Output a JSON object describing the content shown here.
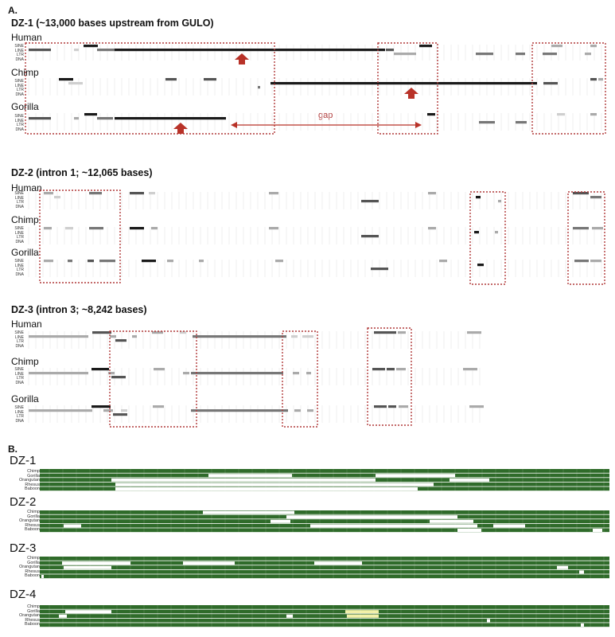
{
  "panel_a": {
    "letter": "A.",
    "sections": [
      {
        "title": "DZ-1 (~13,000 bases upstream from GULO)",
        "species": [
          {
            "name": "Human",
            "rows": [
              "SINE",
              "LINE",
              "LTR",
              "DNA"
            ]
          },
          {
            "name": "Chimp",
            "rows": [
              "SINE",
              "LINE",
              "LTR",
              "DNA"
            ]
          },
          {
            "name": "Gorilla",
            "rows": [
              "SINE",
              "LINE",
              "LTR",
              "DNA"
            ]
          }
        ],
        "gap_label": "gap"
      },
      {
        "title": "DZ-2 (intron 1; ~12,065 bases)",
        "species": [
          {
            "name": "Human",
            "rows": [
              "SINE",
              "LINE",
              "LTR",
              "DNA"
            ]
          },
          {
            "name": "Chimp",
            "rows": [
              "SINE",
              "LINE",
              "LTR",
              "DNA"
            ]
          },
          {
            "name": "Gorilla",
            "rows": [
              "SINE",
              "LINE",
              "LTR",
              "DNA"
            ]
          }
        ]
      },
      {
        "title": "DZ-3 (intron 3; ~8,242 bases)",
        "species": [
          {
            "name": "Human",
            "rows": [
              "SINE",
              "LINE",
              "LTR",
              "DNA"
            ]
          },
          {
            "name": "Chimp",
            "rows": [
              "SINE",
              "LINE",
              "LTR",
              "DNA"
            ]
          },
          {
            "name": "Gorilla",
            "rows": [
              "SINE",
              "LINE",
              "LTR",
              "DNA"
            ]
          }
        ]
      }
    ]
  },
  "panel_b": {
    "letter": "B.",
    "alignments": [
      {
        "title": "DZ-1",
        "species": [
          "Chimp",
          "Gorilla",
          "Orangutan",
          "Rhesus",
          "Baboon"
        ]
      },
      {
        "title": "DZ-2",
        "species": [
          "Chimp",
          "Gorilla",
          "Orangutan",
          "Rhesus",
          "Baboon"
        ]
      },
      {
        "title": "DZ-3",
        "species": [
          "Chimp",
          "Gorilla",
          "Orangutan",
          "Rhesus",
          "Baboon"
        ]
      },
      {
        "title": "DZ-4",
        "species": [
          "Chimp",
          "Gorilla",
          "Orangutan",
          "Rhesus",
          "Baboon"
        ]
      }
    ]
  },
  "colors": {
    "highlight_box": "#b03a3a",
    "arrow": "#b83228",
    "alignment_green": "#2f6b2a",
    "alignment_gap": "#ffffff",
    "alignment_mismatch": "#f2f0a8"
  }
}
